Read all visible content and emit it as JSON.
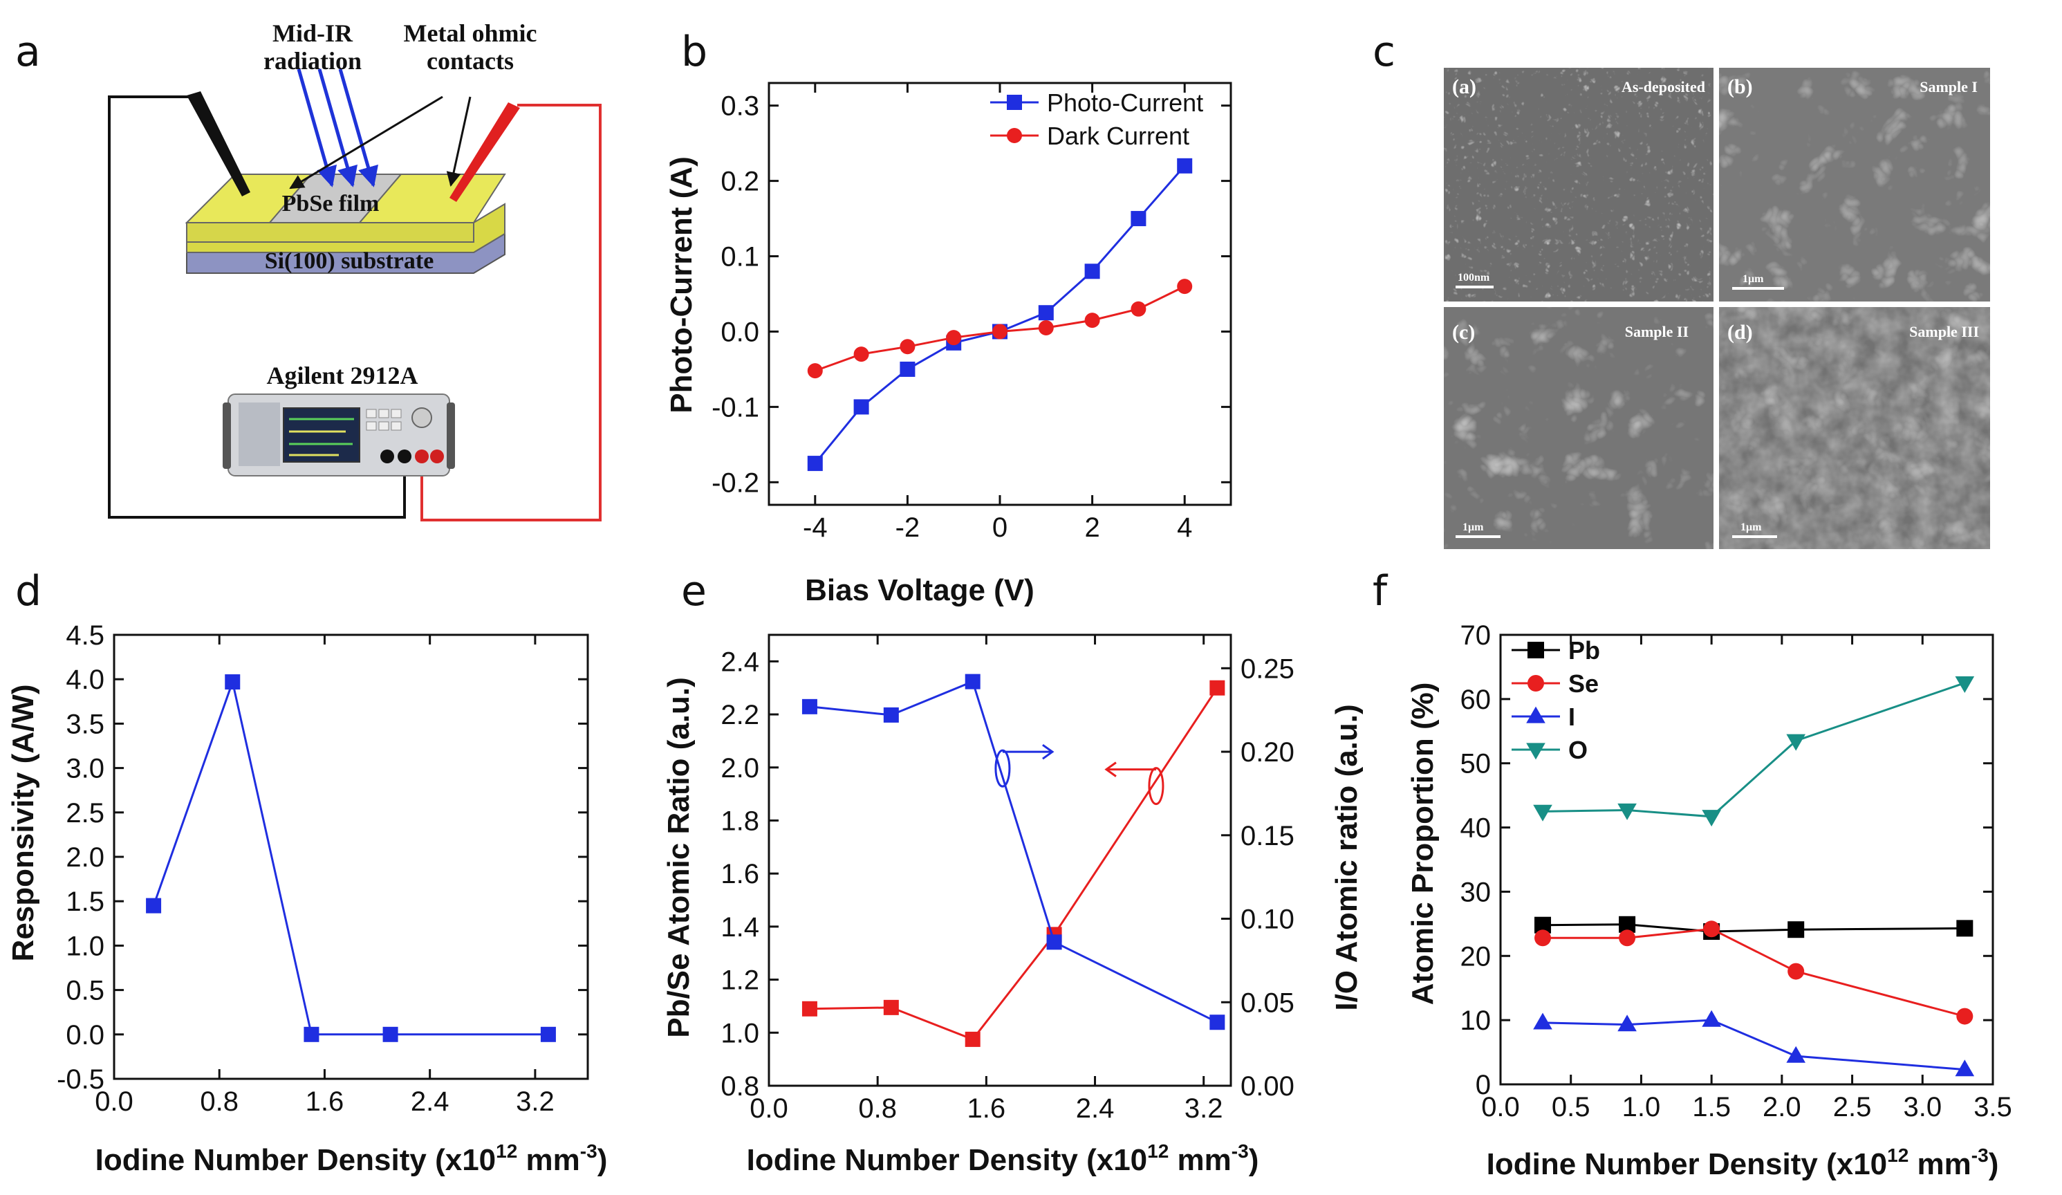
{
  "panel_labels": [
    "a",
    "b",
    "c",
    "d",
    "e",
    "f"
  ],
  "schematic": {
    "mid_ir": [
      "Mid-IR",
      "radiation"
    ],
    "contacts": [
      "Metal ohmic",
      "contacts"
    ],
    "film": "PbSe film",
    "substrate": "Si(100) substrate",
    "instrument": "Agilent 2912A",
    "colors": {
      "gold": "#e8e85a",
      "substrate": "#9aa0c8",
      "ray": "#1e33d8",
      "probe_red": "#e02020",
      "wire_red": "#e03030"
    }
  },
  "sem": {
    "tiles": [
      {
        "id": "(a)",
        "label": "As-deposited",
        "scale": "100nm"
      },
      {
        "id": "(b)",
        "label": "Sample I",
        "scale": "1μm"
      },
      {
        "id": "(c)",
        "label": "Sample II",
        "scale": "1μm"
      },
      {
        "id": "(d)",
        "label": "Sample III",
        "scale": "1μm"
      }
    ]
  },
  "chart_data": [
    {
      "panel": "b",
      "type": "line",
      "xlabel": "Bias Voltage (V)",
      "ylabel": "Photo-Current (A)",
      "xlim": [
        -5,
        5
      ],
      "ylim": [
        -0.23,
        0.33
      ],
      "xticks": [
        -4,
        -2,
        0,
        2,
        4
      ],
      "xtick_labels": [
        "-4",
        "-2",
        "0",
        "2",
        "4"
      ],
      "yticks": [
        -0.2,
        -0.1,
        0.0,
        0.1,
        0.2,
        0.3
      ],
      "ytick_labels": [
        "-0.2",
        "-0.1",
        "0.0",
        "0.1",
        "0.2",
        "0.3"
      ],
      "legend_position": "top-right",
      "series": [
        {
          "name": "Photo-Current",
          "color": "#1f2ee0",
          "marker": "square",
          "x": [
            -4,
            -3,
            -2,
            -1,
            0,
            1,
            2,
            3,
            4
          ],
          "y": [
            -0.175,
            -0.1,
            -0.05,
            -0.015,
            0.0,
            0.025,
            0.08,
            0.15,
            0.22
          ]
        },
        {
          "name": "Dark Current",
          "color": "#e81f1f",
          "marker": "circle",
          "x": [
            -4,
            -3,
            -2,
            -1,
            0,
            1,
            2,
            3,
            4
          ],
          "y": [
            -0.052,
            -0.03,
            -0.02,
            -0.008,
            0.0,
            0.005,
            0.015,
            0.03,
            0.06
          ]
        }
      ]
    },
    {
      "panel": "d",
      "type": "line",
      "xlabel_main": "Iodine Number Density (x10",
      "xlabel_sup": "12",
      "xlabel_unit": " mm",
      "xlabel_sup2": "-3",
      "xlabel_end": ")",
      "ylabel": "Responsivity (A/W)",
      "xlim": [
        0.0,
        3.6
      ],
      "ylim": [
        -0.5,
        4.5
      ],
      "xticks": [
        0.0,
        0.8,
        1.6,
        2.4,
        3.2
      ],
      "xtick_labels": [
        "0.0",
        "0.8",
        "1.6",
        "2.4",
        "3.2"
      ],
      "yticks": [
        -0.5,
        0.0,
        0.5,
        1.0,
        1.5,
        2.0,
        2.5,
        3.0,
        3.5,
        4.0,
        4.5
      ],
      "ytick_labels": [
        "-0.5",
        "0.0",
        "0.5",
        "1.0",
        "1.5",
        "2.0",
        "2.5",
        "3.0",
        "3.5",
        "4.0",
        "4.5"
      ],
      "series": [
        {
          "name": "Responsivity",
          "color": "#1f2ee0",
          "marker": "square",
          "x": [
            0.3,
            0.9,
            1.5,
            2.1,
            3.3
          ],
          "y": [
            1.45,
            3.97,
            0.0,
            0.0,
            0.0
          ]
        }
      ]
    },
    {
      "panel": "e",
      "type": "line",
      "xlabel_main": "Iodine Number Density (x10",
      "xlabel_sup": "12",
      "xlabel_unit": " mm",
      "xlabel_sup2": "-3",
      "xlabel_end": ")",
      "ylabel": "Pb/Se Atomic Ratio (a.u.)",
      "ylabel_right": "I/O Atomic ratio (a.u.)",
      "xlim": [
        0.0,
        3.4
      ],
      "ylim": [
        0.8,
        2.5
      ],
      "ylim_right": [
        0.0,
        0.27
      ],
      "xticks": [
        0.0,
        0.8,
        1.6,
        2.4,
        3.2
      ],
      "xtick_labels": [
        "0.0",
        "0.8",
        "1.6",
        "2.4",
        "3.2"
      ],
      "yticks": [
        0.8,
        1.0,
        1.2,
        1.4,
        1.6,
        1.8,
        2.0,
        2.2,
        2.4
      ],
      "ytick_labels": [
        "0.8",
        "1.0",
        "1.2",
        "1.4",
        "1.6",
        "1.8",
        "2.0",
        "2.2",
        "2.4"
      ],
      "yticks_right": [
        0.0,
        0.05,
        0.1,
        0.15,
        0.2,
        0.25
      ],
      "ytick_labels_right": [
        "0.00",
        "0.05",
        "0.10",
        "0.15",
        "0.20",
        "0.25"
      ],
      "series": [
        {
          "name": "Pb/Se ratio",
          "axis": "left",
          "color": "#e81f1f",
          "marker": "square",
          "x": [
            0.3,
            0.9,
            1.5,
            2.1,
            3.3
          ],
          "y": [
            1.09,
            1.095,
            0.975,
            1.37,
            2.3
          ]
        },
        {
          "name": "I/O ratio",
          "axis": "right",
          "color": "#1f2ee0",
          "marker": "square",
          "x": [
            0.3,
            0.9,
            1.5,
            2.1,
            3.3
          ],
          "y": [
            0.227,
            0.222,
            0.242,
            0.086,
            0.038
          ]
        }
      ],
      "annotations": [
        {
          "text": "arrow to right axis",
          "series": "I/O ratio"
        },
        {
          "text": "arrow to left axis",
          "series": "Pb/Se ratio"
        }
      ]
    },
    {
      "panel": "f",
      "type": "line",
      "xlabel_main": "Iodine Number Density (x10",
      "xlabel_sup": "12",
      "xlabel_unit": " mm",
      "xlabel_sup2": "-3",
      "xlabel_end": ")",
      "ylabel": "Atomic Proportion (%)",
      "xlim": [
        0.0,
        3.5
      ],
      "ylim": [
        0,
        70
      ],
      "xticks": [
        0.0,
        0.5,
        1.0,
        1.5,
        2.0,
        2.5,
        3.0,
        3.5
      ],
      "xtick_labels": [
        "0.0",
        "0.5",
        "1.0",
        "1.5",
        "2.0",
        "2.5",
        "3.0",
        "3.5"
      ],
      "yticks": [
        0,
        10,
        20,
        30,
        40,
        50,
        60,
        70
      ],
      "ytick_labels": [
        "0",
        "10",
        "20",
        "30",
        "40",
        "50",
        "60",
        "70"
      ],
      "legend_position": "top-left",
      "series": [
        {
          "name": "Pb",
          "color": "#000000",
          "marker": "square",
          "x": [
            0.3,
            0.9,
            1.5,
            2.1,
            3.3
          ],
          "y": [
            24.8,
            24.9,
            23.8,
            24.1,
            24.3
          ]
        },
        {
          "name": "Se",
          "color": "#e81f1f",
          "marker": "circle",
          "x": [
            0.3,
            0.9,
            1.5,
            2.1,
            3.3
          ],
          "y": [
            22.8,
            22.8,
            24.2,
            17.6,
            10.6
          ]
        },
        {
          "name": "I",
          "color": "#1f2ee0",
          "marker": "triangle-up",
          "x": [
            0.3,
            0.9,
            1.5,
            2.1,
            3.3
          ],
          "y": [
            9.6,
            9.3,
            10.0,
            4.4,
            2.3
          ]
        },
        {
          "name": "O",
          "color": "#188f86",
          "marker": "triangle-down",
          "x": [
            0.3,
            0.9,
            1.5,
            2.1,
            3.3
          ],
          "y": [
            42.5,
            42.7,
            41.7,
            53.5,
            62.5
          ]
        }
      ]
    }
  ]
}
